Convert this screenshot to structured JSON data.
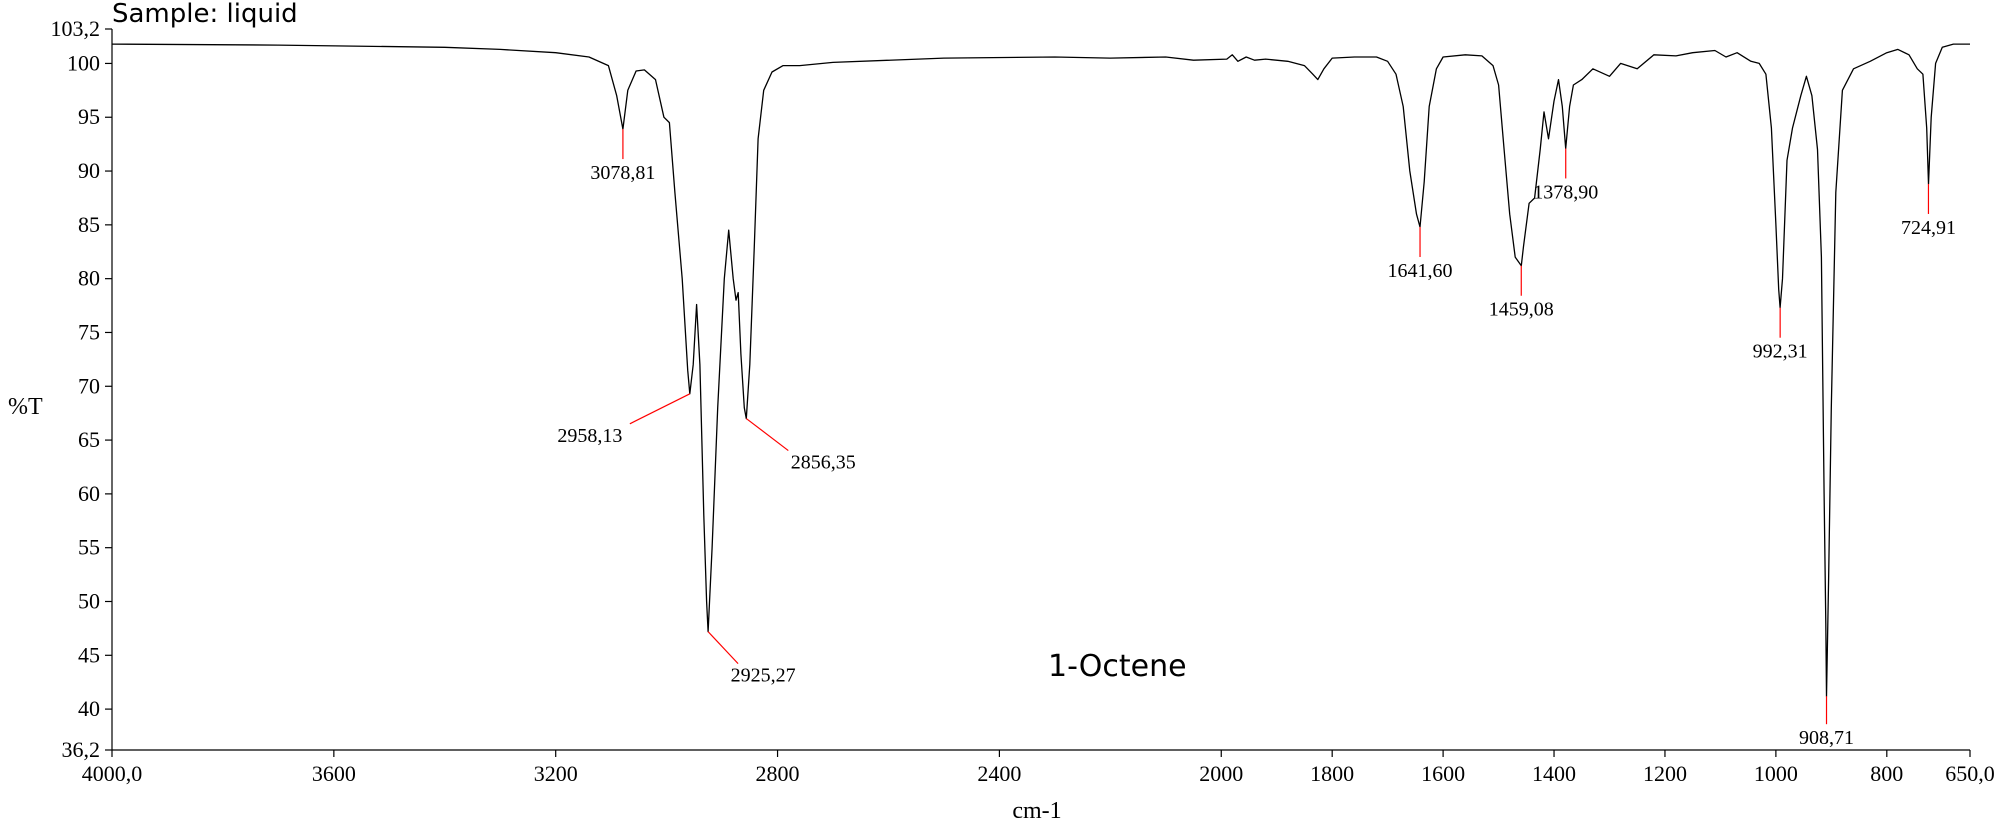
{
  "chart_data": {
    "type": "line",
    "title": "1-Octene",
    "subtitle": "Sample: liquid",
    "xlabel": "cm-1",
    "ylabel": "%T",
    "xlim": [
      4000.0,
      650.0
    ],
    "ylim": [
      36.2,
      103.2
    ],
    "x_reversed": true,
    "grid": false,
    "x_ticks": [
      {
        "value": 4000,
        "label": "4000,0"
      },
      {
        "value": 3600,
        "label": "3600"
      },
      {
        "value": 3200,
        "label": "3200"
      },
      {
        "value": 2800,
        "label": "2800"
      },
      {
        "value": 2400,
        "label": "2400"
      },
      {
        "value": 2000,
        "label": "2000"
      },
      {
        "value": 1800,
        "label": "1800"
      },
      {
        "value": 1600,
        "label": "1600"
      },
      {
        "value": 1400,
        "label": "1400"
      },
      {
        "value": 1200,
        "label": "1200"
      },
      {
        "value": 1000,
        "label": "1000"
      },
      {
        "value": 800,
        "label": "800"
      },
      {
        "value": 650,
        "label": "650,0"
      }
    ],
    "y_ticks": [
      {
        "value": 36.2,
        "label": "36,2"
      },
      {
        "value": 40,
        "label": "40"
      },
      {
        "value": 45,
        "label": "45"
      },
      {
        "value": 50,
        "label": "50"
      },
      {
        "value": 55,
        "label": "55"
      },
      {
        "value": 60,
        "label": "60"
      },
      {
        "value": 65,
        "label": "65"
      },
      {
        "value": 70,
        "label": "70"
      },
      {
        "value": 75,
        "label": "75"
      },
      {
        "value": 80,
        "label": "80"
      },
      {
        "value": 85,
        "label": "85"
      },
      {
        "value": 90,
        "label": "90"
      },
      {
        "value": 95,
        "label": "95"
      },
      {
        "value": 100,
        "label": "100"
      },
      {
        "value": 103.2,
        "label": "103,2"
      }
    ],
    "peaks": [
      {
        "x": 3078.81,
        "y": 93.9,
        "label": "3078,81"
      },
      {
        "x": 2958.13,
        "y": 69.3,
        "label": "2958,13"
      },
      {
        "x": 2925.27,
        "y": 47.2,
        "label": "2925,27"
      },
      {
        "x": 2856.35,
        "y": 67.0,
        "label": "2856,35"
      },
      {
        "x": 1641.6,
        "y": 84.8,
        "label": "1641,60"
      },
      {
        "x": 1459.08,
        "y": 81.2,
        "label": "1459,08"
      },
      {
        "x": 1378.9,
        "y": 92.1,
        "label": "1378,90"
      },
      {
        "x": 992.31,
        "y": 77.3,
        "label": "992,31"
      },
      {
        "x": 908.71,
        "y": 41.2,
        "label": "908,71"
      },
      {
        "x": 724.91,
        "y": 88.8,
        "label": "724,91"
      }
    ],
    "series": [
      {
        "color": "#000000",
        "points": [
          [
            4000,
            101.8
          ],
          [
            3700,
            101.7
          ],
          [
            3400,
            101.5
          ],
          [
            3300,
            101.3
          ],
          [
            3200,
            101.0
          ],
          [
            3140,
            100.6
          ],
          [
            3105,
            99.8
          ],
          [
            3090,
            97.0
          ],
          [
            3078.81,
            93.9
          ],
          [
            3070,
            97.5
          ],
          [
            3055,
            99.3
          ],
          [
            3040,
            99.4
          ],
          [
            3020,
            98.5
          ],
          [
            3005,
            95.0
          ],
          [
            2995,
            94.5
          ],
          [
            2985,
            88.0
          ],
          [
            2972,
            80.0
          ],
          [
            2962,
            71.5
          ],
          [
            2958.13,
            69.3
          ],
          [
            2952,
            72.0
          ],
          [
            2946,
            77.6
          ],
          [
            2940,
            72.0
          ],
          [
            2933,
            58.0
          ],
          [
            2928,
            50.0
          ],
          [
            2925.27,
            47.2
          ],
          [
            2918,
            55.0
          ],
          [
            2908,
            68.0
          ],
          [
            2896,
            80.0
          ],
          [
            2888,
            84.5
          ],
          [
            2880,
            80.0
          ],
          [
            2875,
            78.0
          ],
          [
            2871,
            78.7
          ],
          [
            2866,
            73.0
          ],
          [
            2860,
            68.0
          ],
          [
            2856.35,
            67.0
          ],
          [
            2850,
            72.0
          ],
          [
            2842,
            83.0
          ],
          [
            2835,
            93.0
          ],
          [
            2825,
            97.5
          ],
          [
            2810,
            99.2
          ],
          [
            2790,
            99.8
          ],
          [
            2760,
            99.8
          ],
          [
            2700,
            100.1
          ],
          [
            2500,
            100.5
          ],
          [
            2300,
            100.6
          ],
          [
            2200,
            100.5
          ],
          [
            2100,
            100.6
          ],
          [
            2050,
            100.3
          ],
          [
            1990,
            100.4
          ],
          [
            1980,
            100.8
          ],
          [
            1970,
            100.2
          ],
          [
            1955,
            100.6
          ],
          [
            1940,
            100.3
          ],
          [
            1920,
            100.4
          ],
          [
            1880,
            100.2
          ],
          [
            1850,
            99.8
          ],
          [
            1835,
            99.0
          ],
          [
            1826,
            98.5
          ],
          [
            1815,
            99.5
          ],
          [
            1800,
            100.5
          ],
          [
            1760,
            100.6
          ],
          [
            1720,
            100.6
          ],
          [
            1700,
            100.2
          ],
          [
            1685,
            99.0
          ],
          [
            1672,
            96.0
          ],
          [
            1660,
            90.0
          ],
          [
            1648,
            86.0
          ],
          [
            1641.6,
            84.8
          ],
          [
            1634,
            89.0
          ],
          [
            1625,
            96.0
          ],
          [
            1612,
            99.5
          ],
          [
            1600,
            100.6
          ],
          [
            1560,
            100.8
          ],
          [
            1530,
            100.7
          ],
          [
            1510,
            99.8
          ],
          [
            1500,
            98.0
          ],
          [
            1490,
            92.0
          ],
          [
            1480,
            86.0
          ],
          [
            1470,
            82.0
          ],
          [
            1459.08,
            81.2
          ],
          [
            1455,
            83.0
          ],
          [
            1445,
            87.0
          ],
          [
            1435,
            87.5
          ],
          [
            1425,
            92.0
          ],
          [
            1418,
            95.5
          ],
          [
            1410,
            93.0
          ],
          [
            1400,
            96.5
          ],
          [
            1392,
            98.5
          ],
          [
            1385,
            96.0
          ],
          [
            1378.9,
            92.1
          ],
          [
            1372,
            96.0
          ],
          [
            1365,
            98.0
          ],
          [
            1350,
            98.5
          ],
          [
            1330,
            99.5
          ],
          [
            1300,
            98.8
          ],
          [
            1280,
            100.0
          ],
          [
            1250,
            99.5
          ],
          [
            1220,
            100.8
          ],
          [
            1180,
            100.7
          ],
          [
            1150,
            101.0
          ],
          [
            1110,
            101.2
          ],
          [
            1090,
            100.6
          ],
          [
            1070,
            101.0
          ],
          [
            1045,
            100.2
          ],
          [
            1030,
            100.0
          ],
          [
            1018,
            99.0
          ],
          [
            1008,
            94.0
          ],
          [
            1000,
            85.0
          ],
          [
            995,
            79.0
          ],
          [
            992.31,
            77.3
          ],
          [
            988,
            80.0
          ],
          [
            980,
            91.0
          ],
          [
            970,
            94.0
          ],
          [
            955,
            97.0
          ],
          [
            945,
            98.8
          ],
          [
            935,
            97.0
          ],
          [
            925,
            92.0
          ],
          [
            918,
            82.0
          ],
          [
            913,
            60.0
          ],
          [
            910,
            48.0
          ],
          [
            908.71,
            41.2
          ],
          [
            905,
            52.0
          ],
          [
            900,
            68.0
          ],
          [
            892,
            88.0
          ],
          [
            880,
            97.5
          ],
          [
            860,
            99.5
          ],
          [
            830,
            100.2
          ],
          [
            800,
            101.0
          ],
          [
            780,
            101.3
          ],
          [
            760,
            100.8
          ],
          [
            745,
            99.5
          ],
          [
            735,
            99.0
          ],
          [
            728,
            94.0
          ],
          [
            724.91,
            88.8
          ],
          [
            720,
            95.0
          ],
          [
            712,
            100.0
          ],
          [
            700,
            101.5
          ],
          [
            680,
            101.8
          ],
          [
            650,
            101.8
          ]
        ]
      }
    ]
  }
}
